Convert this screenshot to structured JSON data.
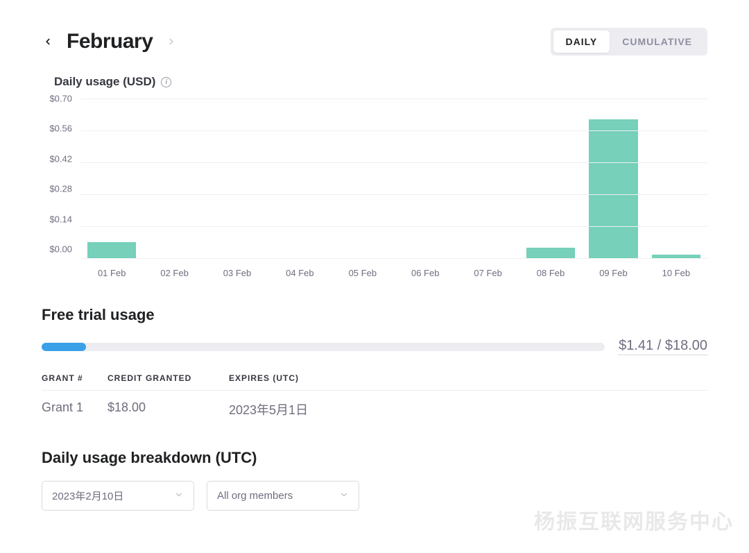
{
  "header": {
    "month_label": "February",
    "prev_enabled": true,
    "next_enabled": false,
    "toggle": {
      "daily_label": "DAILY",
      "cumulative_label": "CUMULATIVE",
      "active": "daily"
    }
  },
  "chart": {
    "title": "Daily usage (USD)",
    "type": "bar",
    "ylim": [
      0,
      0.7
    ],
    "y_ticks": [
      "$0.70",
      "$0.56",
      "$0.42",
      "$0.28",
      "$0.14",
      "$0.00"
    ],
    "y_tick_values": [
      0.7,
      0.56,
      0.42,
      0.28,
      0.14,
      0.0
    ],
    "x_labels": [
      "01 Feb",
      "02 Feb",
      "03 Feb",
      "04 Feb",
      "05 Feb",
      "06 Feb",
      "07 Feb",
      "08 Feb",
      "09 Feb",
      "10 Feb"
    ],
    "values": [
      0.07,
      0,
      0,
      0,
      0,
      0,
      0,
      0.045,
      0.61,
      0.015
    ],
    "bar_color": "#76d0ba",
    "grid_color": "#efeff3",
    "axis_label_color": "#6e6e80",
    "bar_width_ratio": 0.78
  },
  "free_trial": {
    "title": "Free trial usage",
    "used": 1.41,
    "total": 18.0,
    "amount_label": "$1.41 / $18.00",
    "progress_color": "#3aa0e8",
    "progress_bg": "#ececf1",
    "table": {
      "headers": {
        "grant": "GRANT #",
        "credit": "CREDIT GRANTED",
        "expires": "EXPIRES (UTC)"
      },
      "rows": [
        {
          "grant": "Grant 1",
          "credit": "$18.00",
          "expires": "2023年5月1日"
        }
      ]
    }
  },
  "breakdown": {
    "title": "Daily usage breakdown (UTC)",
    "date_select": {
      "value": "2023年2月10日"
    },
    "member_select": {
      "value": "All org members"
    }
  },
  "watermark": "杨振互联网服务中心"
}
